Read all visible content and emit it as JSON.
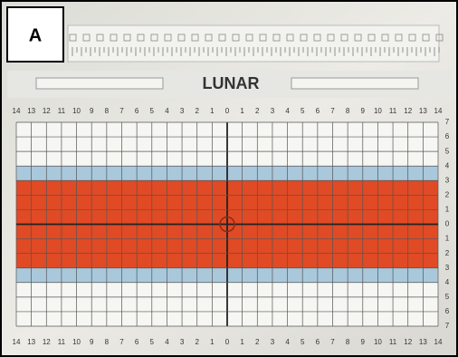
{
  "panel_label": "A",
  "brand": "LUNAR",
  "top_scale": [
    14,
    13,
    12,
    11,
    10,
    9,
    8,
    7,
    6,
    5,
    4,
    3,
    2,
    1,
    0,
    1,
    2,
    3,
    4,
    5,
    6,
    7,
    8,
    9,
    10,
    11,
    12,
    13,
    14
  ],
  "side_scale": [
    7,
    6,
    5,
    4,
    3,
    2,
    1,
    0,
    1,
    2,
    3,
    4,
    5,
    6,
    7
  ],
  "bottom_scale": [
    14,
    13,
    12,
    11,
    10,
    9,
    8,
    7,
    6,
    5,
    4,
    3,
    2,
    1,
    0,
    1,
    2,
    3,
    4,
    5,
    6,
    7,
    8,
    9,
    10,
    11,
    12,
    13,
    14
  ]
}
